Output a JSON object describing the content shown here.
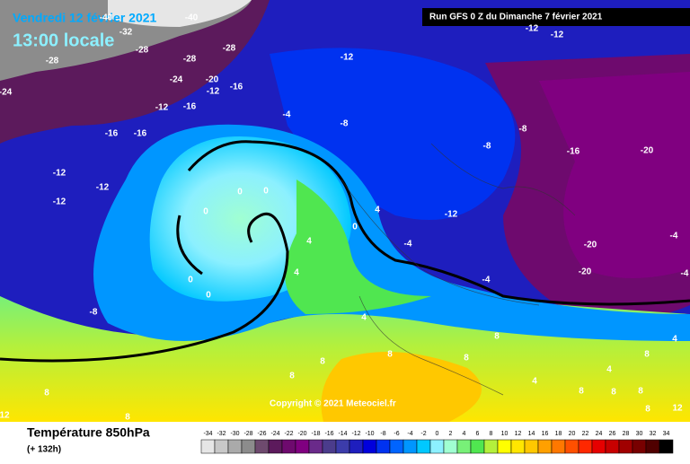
{
  "header": {
    "date": "Vendredi 12 février 2021",
    "time": "13:00 locale",
    "run": "Run GFS 0 Z du Dimanche 7 février 2021"
  },
  "map": {
    "labels": [
      -40,
      -40,
      -32,
      -28,
      -28,
      -28,
      -28,
      -24,
      -24,
      -20,
      -16,
      -12,
      -12,
      -16,
      -16,
      -16,
      -12,
      -12,
      -12,
      -8,
      -12,
      -12,
      -12,
      -4,
      -8,
      -8,
      -8,
      -16,
      -20,
      -12,
      -20,
      -20,
      -4,
      -4,
      -4,
      -4,
      0,
      0,
      0,
      0,
      0,
      4,
      4,
      4,
      0,
      4,
      8,
      8,
      8,
      8,
      8,
      8,
      8,
      4,
      8,
      4,
      4,
      8,
      8,
      8,
      12,
      8,
      12
    ],
    "copyright": "Copyright © 2021 Meteociel.fr"
  },
  "legend": {
    "title": "Température 850hPa",
    "lead": "(+ 132h)",
    "ticks": [
      -34,
      -32,
      -30,
      -28,
      -26,
      -24,
      -22,
      -20,
      -18,
      -16,
      -14,
      -12,
      -10,
      -8,
      -6,
      -4,
      -2,
      0,
      2,
      4,
      6,
      8,
      10,
      12,
      14,
      16,
      18,
      20,
      22,
      24,
      26,
      28,
      30,
      32,
      34
    ],
    "colors": [
      "#e6e6e6",
      "#c8c8c8",
      "#aaaaaa",
      "#8c8c8c",
      "#6e4a6e",
      "#5c1a5c",
      "#6e0a6e",
      "#800080",
      "#6a2a8a",
      "#4b3c8c",
      "#3c3caa",
      "#1e1ebe",
      "#0000dc",
      "#0032f0",
      "#0064ff",
      "#0096ff",
      "#00c8ff",
      "#8cf0ff",
      "#a0ffd2",
      "#78f078",
      "#50e650",
      "#b4f03c",
      "#ffff00",
      "#ffe600",
      "#ffc800",
      "#ffa000",
      "#ff7800",
      "#ff5000",
      "#ff2800",
      "#e60000",
      "#c80000",
      "#a00000",
      "#780000",
      "#500000",
      "#000000"
    ]
  }
}
